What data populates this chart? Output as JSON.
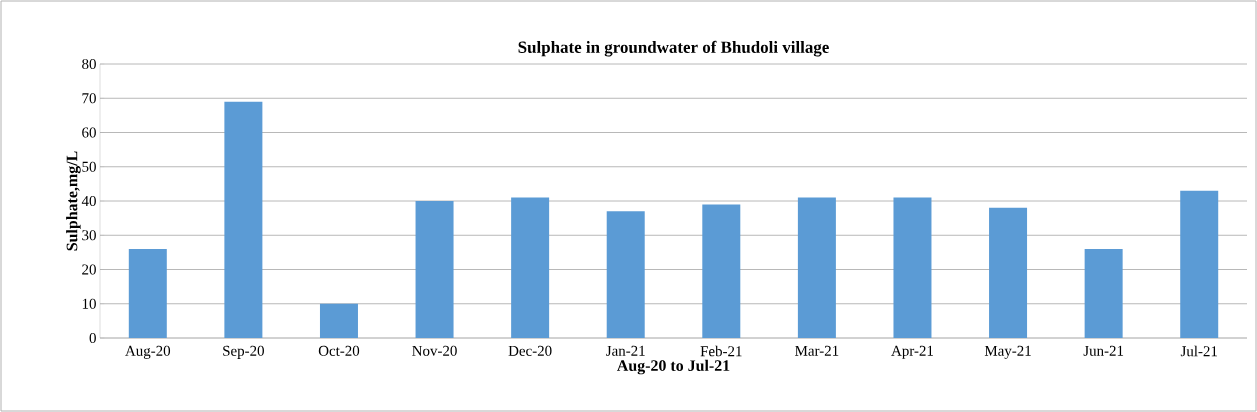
{
  "chart_data": {
    "type": "bar",
    "title": "Sulphate in groundwater  of Bhudoli village",
    "xlabel": "Aug-20 to Jul-21",
    "ylabel": "Sulphate,mg/L",
    "categories": [
      "Aug-20",
      "Sep-20",
      "Oct-20",
      "Nov-20",
      "Dec-20",
      "Jan-21",
      "Feb-21",
      "Mar-21",
      "Apr-21",
      "May-21",
      "Jun-21",
      "Jul-21"
    ],
    "values": [
      26,
      69,
      10,
      40,
      41,
      37,
      39,
      41,
      41,
      38,
      26,
      43
    ],
    "color": "#5b9bd5",
    "ylim": [
      0,
      80
    ],
    "yticks": [
      0,
      10,
      20,
      30,
      40,
      50,
      60,
      70,
      80
    ],
    "grid": "y"
  }
}
